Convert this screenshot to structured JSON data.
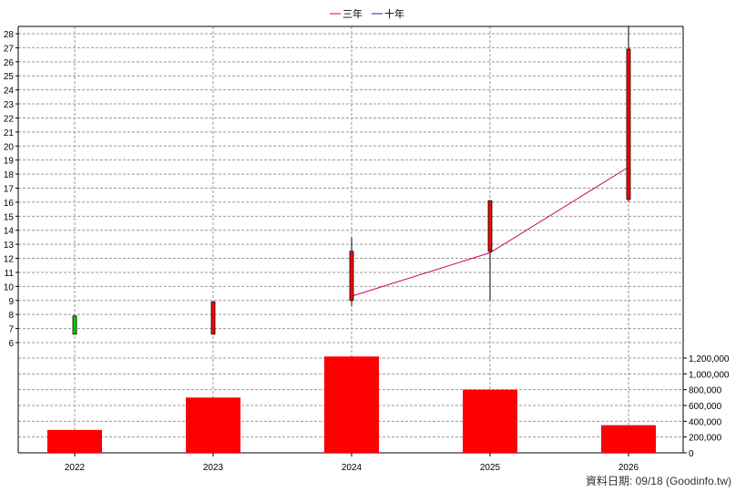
{
  "chart_data": {
    "type": "candlestick+line+bar",
    "legend": {
      "placement": "top-center",
      "items": [
        {
          "name": "三年",
          "color": "#cc0066"
        },
        {
          "name": "十年",
          "color": "#5500aa"
        }
      ]
    },
    "categories": [
      "2022",
      "2023",
      "2024",
      "2025",
      "2026"
    ],
    "price_axis": {
      "min": 6,
      "max": 28,
      "step": 1,
      "grid": true
    },
    "volume_axis": {
      "min": 0,
      "max": 1200000,
      "step": 200000,
      "grid": true,
      "tick_labels": [
        "0",
        "200,000",
        "400,000",
        "600,000",
        "800,000",
        "1,000,000",
        "1,200,000"
      ]
    },
    "candles": [
      {
        "year": "2022",
        "open": 6.6,
        "close": 7.9,
        "high": 7.9,
        "low": 6.6,
        "color": "#00cc00"
      },
      {
        "year": "2023",
        "open": 6.6,
        "close": 8.9,
        "high": 8.9,
        "low": 6.6,
        "color": "#ff0000"
      },
      {
        "year": "2024",
        "open": 9.0,
        "close": 12.5,
        "high": 13.5,
        "low": 8.6,
        "color": "#ff0000"
      },
      {
        "year": "2025",
        "open": 12.5,
        "close": 16.1,
        "high": 16.1,
        "low": 9.0,
        "color": "#ff0000"
      },
      {
        "year": "2026",
        "open": 16.2,
        "close": 26.9,
        "high": 28.5,
        "low": 16.0,
        "color": "#ff0000"
      }
    ],
    "series": [
      {
        "name": "三年",
        "type": "line",
        "color": "#cc0066",
        "points": [
          {
            "x": "2024",
            "y": 9.3
          },
          {
            "x": "2025",
            "y": 12.4
          },
          {
            "x": "2026",
            "y": 18.5
          }
        ]
      },
      {
        "name": "十年",
        "type": "line",
        "color": "#5500aa",
        "points": []
      }
    ],
    "volume": {
      "color": "#ff0000",
      "values": [
        290000,
        700000,
        1220000,
        800000,
        350000
      ]
    },
    "footer": "資料日期: 09/18  (Goodinfo.tw)"
  }
}
